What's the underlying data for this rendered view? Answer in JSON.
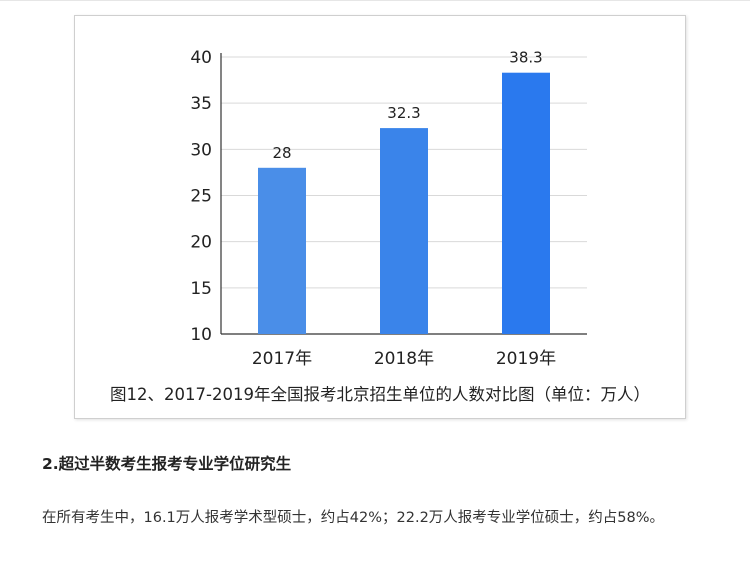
{
  "chart_data": {
    "type": "bar",
    "categories": [
      "2017年",
      "2018年",
      "2019年"
    ],
    "values": [
      28,
      32.3,
      38.3
    ],
    "value_labels": [
      "28",
      "32.3",
      "38.3"
    ],
    "ylim": [
      10,
      40
    ],
    "yticks": [
      10,
      15,
      20,
      25,
      30,
      35,
      40
    ],
    "grid": true,
    "colors": [
      "#4a8ee8",
      "#3a84ea",
      "#2a79ee"
    ],
    "caption": "图12、2017-2019年全国报考北京招生单位的人数对比图（单位：万人）"
  },
  "article": {
    "heading": "2.超过半数考生报考专业学位研究生",
    "paragraph": "在所有考生中，16.1万人报考学术型硕士，约占42%；22.2万人报考专业学位硕士，约占58%。"
  }
}
